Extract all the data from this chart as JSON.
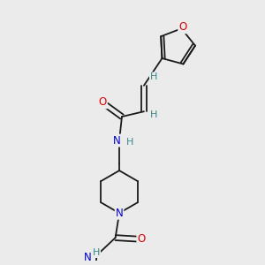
{
  "background_color": "#ebebeb",
  "bond_color": "#1a1a1a",
  "atom_colors": {
    "O": "#dd0000",
    "N": "#0000cc",
    "H": "#3a8888",
    "C": "#1a1a1a"
  },
  "figsize": [
    3.0,
    3.0
  ],
  "dpi": 100,
  "xlim": [
    0,
    10
  ],
  "ylim": [
    0,
    10
  ]
}
